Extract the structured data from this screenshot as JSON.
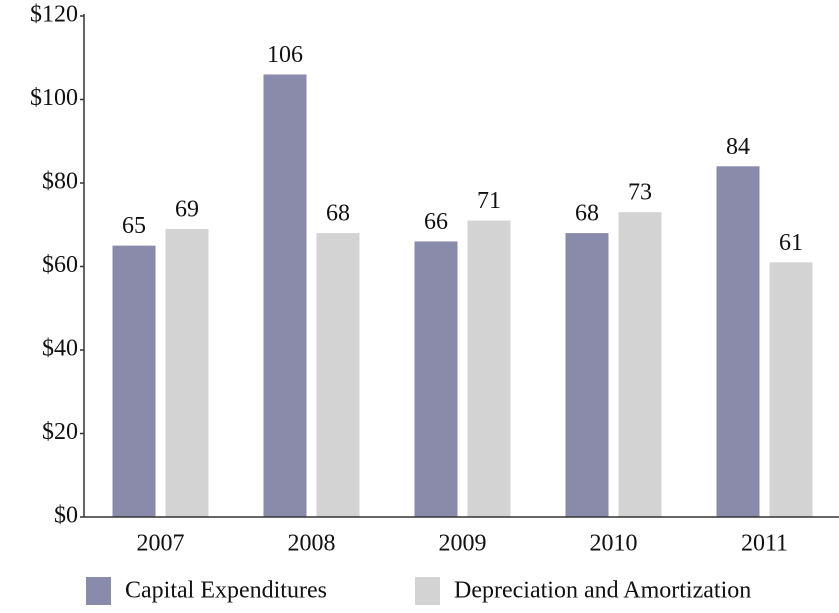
{
  "chart_data": {
    "type": "bar",
    "categories": [
      "2007",
      "2008",
      "2009",
      "2010",
      "2011"
    ],
    "series": [
      {
        "name": "Capital Expenditures",
        "color": "#8a8aaa",
        "values": [
          65,
          106,
          66,
          68,
          84
        ]
      },
      {
        "name": "Depreciation and Amortization",
        "color": "#d3d3d3",
        "values": [
          69,
          68,
          71,
          73,
          61
        ]
      }
    ],
    "ylim": [
      0,
      120
    ],
    "yticks": [
      {
        "value": 0,
        "label": "$0"
      },
      {
        "value": 20,
        "label": "$20"
      },
      {
        "value": 40,
        "label": "$40"
      },
      {
        "value": 60,
        "label": "$60"
      },
      {
        "value": 80,
        "label": "$80"
      },
      {
        "value": 100,
        "label": "$100"
      },
      {
        "value": 120,
        "label": "$120"
      }
    ],
    "grid": false,
    "legend": "bottom"
  }
}
